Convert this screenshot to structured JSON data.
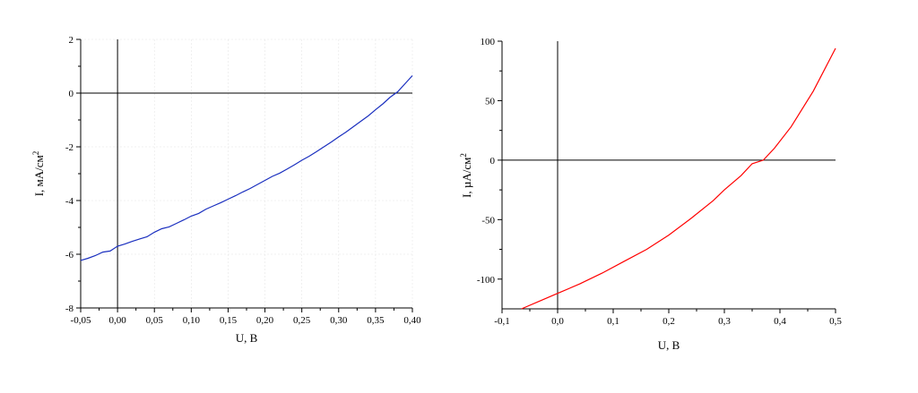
{
  "chart_data": [
    {
      "type": "line",
      "xlabel": "U, В",
      "ylabel": "I, мА/см",
      "ylabel_superscript": "2",
      "xlim": [
        -0.05,
        0.4
      ],
      "ylim": [
        -8,
        2
      ],
      "xticks": [
        -0.05,
        0.0,
        0.05,
        0.1,
        0.15,
        0.2,
        0.25,
        0.3,
        0.35,
        0.4
      ],
      "xtick_labels": [
        "-0,05",
        "0,00",
        "0,05",
        "0,10",
        "0,15",
        "0,20",
        "0,25",
        "0,30",
        "0,35",
        "0,40"
      ],
      "yticks": [
        -8,
        -6,
        -4,
        -2,
        0,
        2
      ],
      "ytick_labels": [
        "-8",
        "-6",
        "-4",
        "-2",
        "0",
        "2"
      ],
      "grid": true,
      "color": "#1a2fbf",
      "series": [
        {
          "x": [
            -0.05,
            -0.04,
            -0.03,
            -0.02,
            -0.01,
            0.0,
            0.01,
            0.02,
            0.03,
            0.04,
            0.05,
            0.06,
            0.07,
            0.08,
            0.09,
            0.1,
            0.11,
            0.12,
            0.13,
            0.14,
            0.15,
            0.16,
            0.17,
            0.18,
            0.19,
            0.2,
            0.21,
            0.22,
            0.23,
            0.24,
            0.25,
            0.26,
            0.27,
            0.28,
            0.29,
            0.3,
            0.31,
            0.32,
            0.33,
            0.34,
            0.35,
            0.36,
            0.37,
            0.38,
            0.39,
            0.4
          ],
          "values": [
            -6.23,
            -6.15,
            -6.05,
            -5.92,
            -5.88,
            -5.7,
            -5.62,
            -5.52,
            -5.43,
            -5.35,
            -5.18,
            -5.05,
            -4.98,
            -4.85,
            -4.72,
            -4.58,
            -4.48,
            -4.32,
            -4.2,
            -4.08,
            -3.95,
            -3.82,
            -3.68,
            -3.55,
            -3.4,
            -3.25,
            -3.1,
            -2.98,
            -2.83,
            -2.67,
            -2.5,
            -2.35,
            -2.18,
            -2.0,
            -1.82,
            -1.63,
            -1.45,
            -1.25,
            -1.05,
            -0.85,
            -0.62,
            -0.4,
            -0.15,
            0.05,
            0.35,
            0.65
          ]
        }
      ]
    },
    {
      "type": "line",
      "xlabel": "U, В",
      "ylabel": "I, µA/см",
      "ylabel_superscript": "2",
      "xlim": [
        -0.1,
        0.5
      ],
      "ylim": [
        -125,
        100
      ],
      "xticks": [
        -0.1,
        0.0,
        0.1,
        0.2,
        0.3,
        0.4,
        0.5
      ],
      "xtick_labels": [
        "-0,1",
        "0,0",
        "0,1",
        "0,2",
        "0,3",
        "0,4",
        "0,5"
      ],
      "yticks": [
        -100,
        -50,
        0,
        50,
        100
      ],
      "ytick_labels": [
        "-100",
        "-50",
        "0",
        "50",
        "100"
      ],
      "grid": false,
      "color": "#ff0000",
      "series": [
        {
          "x": [
            -0.065,
            -0.03,
            0.0,
            0.04,
            0.08,
            0.12,
            0.16,
            0.2,
            0.24,
            0.28,
            0.3,
            0.33,
            0.35,
            0.37,
            0.39,
            0.42,
            0.46,
            0.5
          ],
          "values": [
            -125,
            -118,
            -112,
            -104,
            -95,
            -85,
            -75,
            -63,
            -49,
            -34,
            -25,
            -13,
            -3,
            0,
            10,
            28,
            58,
            94
          ]
        }
      ]
    }
  ]
}
